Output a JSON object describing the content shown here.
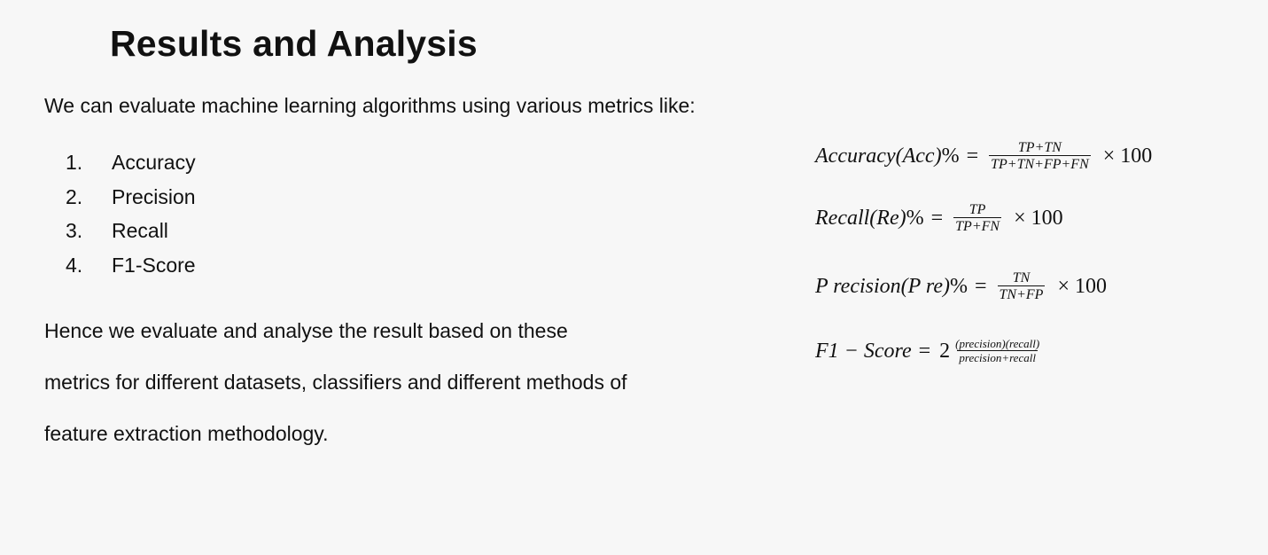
{
  "slide": {
    "title": "Results and Analysis",
    "intro": "We can evaluate machine learning algorithms using various metrics like:",
    "metrics": [
      {
        "num": "1.",
        "label": "Accuracy"
      },
      {
        "num": "2.",
        "label": "Precision"
      },
      {
        "num": "3.",
        "label": "Recall"
      },
      {
        "num": "4.",
        "label": "F1-Score"
      }
    ],
    "conclusion_lines": [
      "Hence we evaluate and analyse the result based on these",
      "metrics for different datasets, classifiers and different methods of",
      "feature extraction methodology."
    ]
  },
  "formulas": {
    "accuracy": {
      "lhs": "Accuracy(Acc)",
      "pct": "%",
      "eq": "=",
      "numerator": "TP+TN",
      "denominator": "TP+TN+FP+FN",
      "factor": "× 100"
    },
    "recall": {
      "lhs": "Recall(Re)",
      "pct": "%",
      "eq": "=",
      "numerator": "TP",
      "denominator": "TP+FN",
      "factor": "× 100"
    },
    "precision": {
      "lhs": "P recision(P re)",
      "pct": "%",
      "eq": "=",
      "numerator": "TN",
      "denominator": "TN+FP",
      "factor": "× 100"
    },
    "f1": {
      "lhs": "F1 − Score",
      "eq": "=",
      "coefficient": "2",
      "numerator": "(precision)(recall)",
      "denominator": "precision+recall"
    }
  }
}
